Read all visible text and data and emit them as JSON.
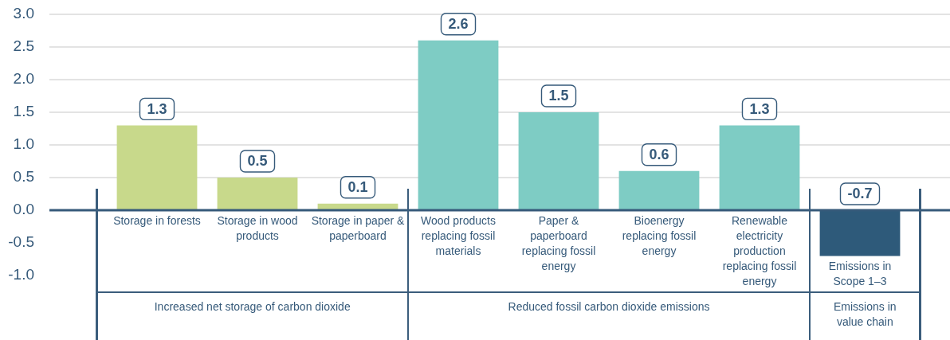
{
  "chart_data": {
    "type": "bar",
    "categories": [
      "Storage in forests",
      "Storage in wood products",
      "Storage in paper & paperboard",
      "Wood products replacing fossil materials",
      "Paper & paperboard replacing fossil energy",
      "Bioenergy replacing fossil energy",
      "Renewable electricity production replacing fossil energy",
      "Emissions in Scope 1–3"
    ],
    "values": [
      1.3,
      0.5,
      0.1,
      2.6,
      1.5,
      0.6,
      1.3,
      -0.7
    ],
    "colors": [
      "#c8d98b",
      "#c8d98b",
      "#c8d98b",
      "#7eccc4",
      "#7eccc4",
      "#7eccc4",
      "#7eccc4",
      "#2e5a7a"
    ],
    "ylim": [
      -1,
      3
    ],
    "yticks": [
      {
        "value": -1,
        "label": "-1.0"
      },
      {
        "value": -0.5,
        "label": "-0.5"
      },
      {
        "value": 0,
        "label": "0.0"
      },
      {
        "value": 0.5,
        "label": "0.5"
      },
      {
        "value": 1,
        "label": "1.0"
      },
      {
        "value": 1.5,
        "label": "1.5"
      },
      {
        "value": 2,
        "label": "2.0"
      },
      {
        "value": 2.5,
        "label": "2.5"
      },
      {
        "value": 3,
        "label": "3.0"
      }
    ],
    "grid": "y",
    "data_labels": true,
    "annotations": [
      "Increased net storage of carbon dioxide",
      "Reduced fossil carbon dioxide emissions",
      "Emissions in value chain"
    ]
  }
}
